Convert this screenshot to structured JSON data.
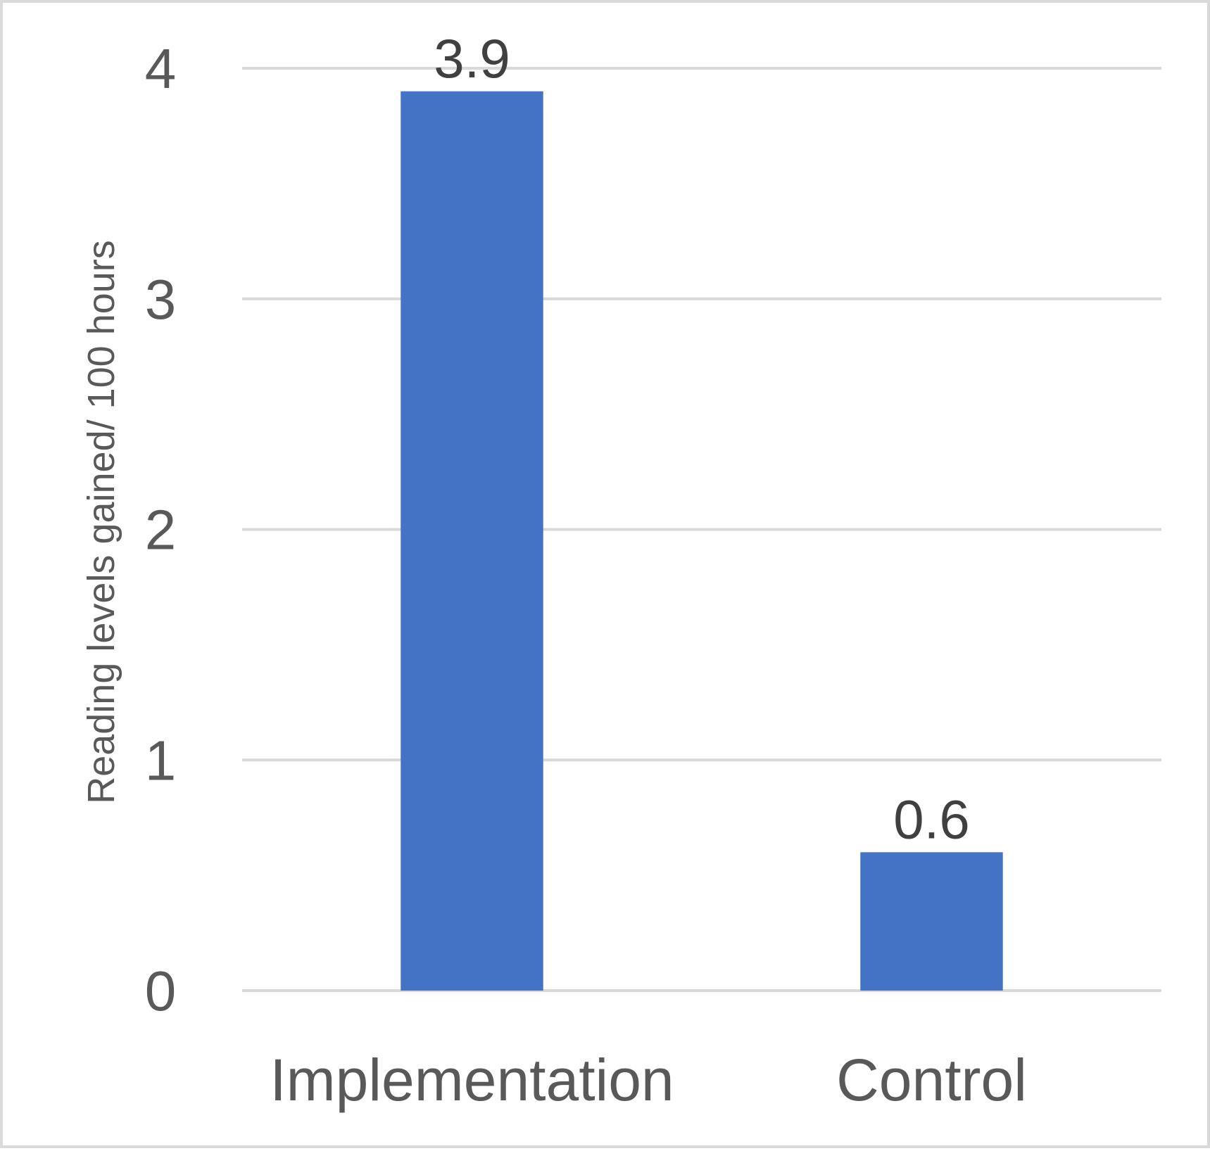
{
  "chart_data": {
    "type": "bar",
    "categories": [
      "Implementation",
      "Control"
    ],
    "values": [
      3.9,
      0.6
    ],
    "data_labels": [
      "3.9",
      "0.6"
    ],
    "title": "",
    "xlabel": "",
    "ylabel": "Reading levels gained/ 100 hours",
    "ylim": [
      0,
      4
    ],
    "yticks": [
      0,
      1,
      2,
      3,
      4
    ],
    "ytick_labels": [
      "0",
      "1",
      "2",
      "3",
      "4"
    ],
    "grid": true,
    "legend": "none",
    "colors": {
      "bar": "#4472c4",
      "grid": "#d9d9d9",
      "text": "#595959",
      "data_label": "#404040",
      "border": "#d9d9d9"
    }
  }
}
